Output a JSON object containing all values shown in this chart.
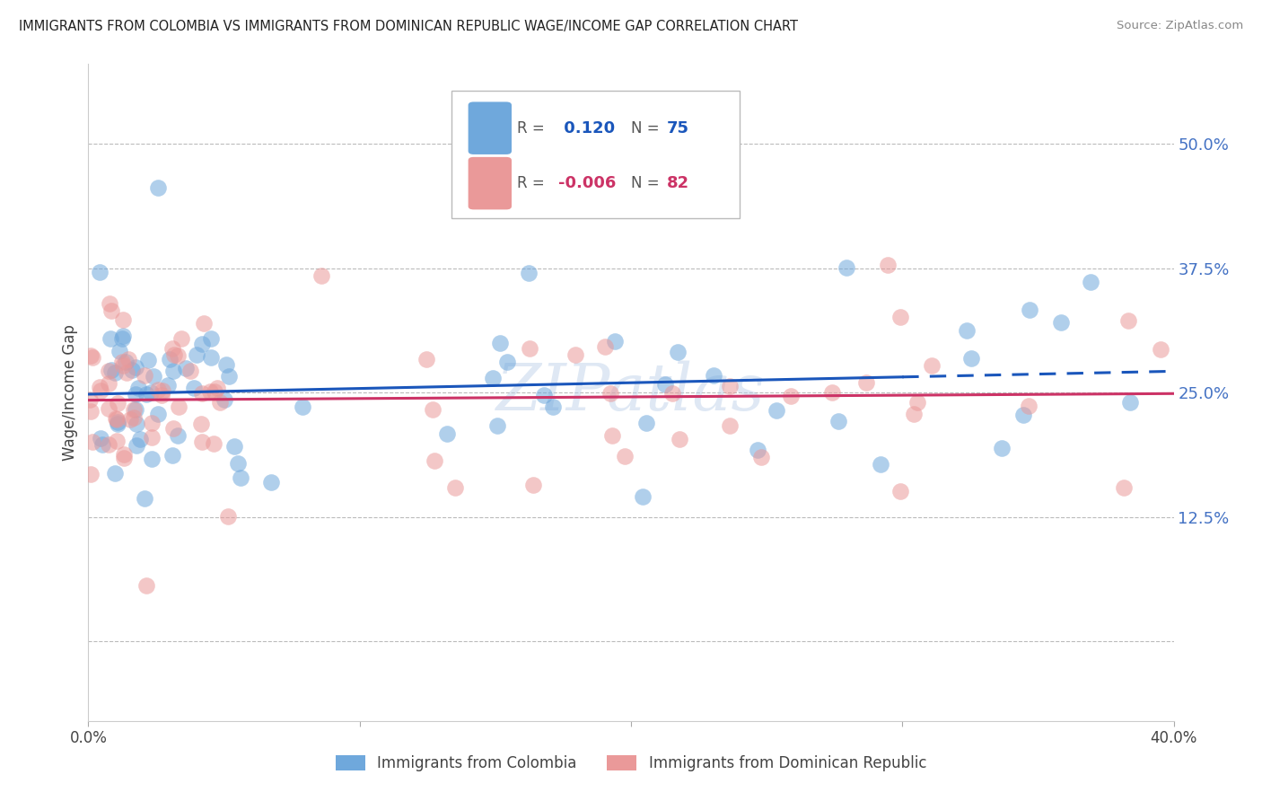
{
  "title": "IMMIGRANTS FROM COLOMBIA VS IMMIGRANTS FROM DOMINICAN REPUBLIC WAGE/INCOME GAP CORRELATION CHART",
  "source": "Source: ZipAtlas.com",
  "ylabel": "Wage/Income Gap",
  "colombia_R": 0.12,
  "colombia_N": 75,
  "dr_R": -0.006,
  "dr_N": 82,
  "colombia_color": "#6fa8dc",
  "dr_color": "#ea9999",
  "colombia_line_color": "#1a56bb",
  "dr_line_color": "#cc3366",
  "background_color": "#ffffff",
  "grid_color": "#bbbbbb",
  "title_color": "#222222",
  "right_axis_color": "#4472c4",
  "watermark": "ZIPatlas",
  "legend_label_colombia": "Immigrants from Colombia",
  "legend_label_dr": "Immigrants from Dominican Republic",
  "xlim": [
    0.0,
    0.4
  ],
  "ylim": [
    -0.08,
    0.58
  ],
  "yticks": [
    0.0,
    0.125,
    0.25,
    0.375,
    0.5
  ],
  "yticklabels": [
    "",
    "12.5%",
    "25.0%",
    "37.5%",
    "50.0%"
  ],
  "xtick_left": "0.0%",
  "xtick_right": "40.0%"
}
